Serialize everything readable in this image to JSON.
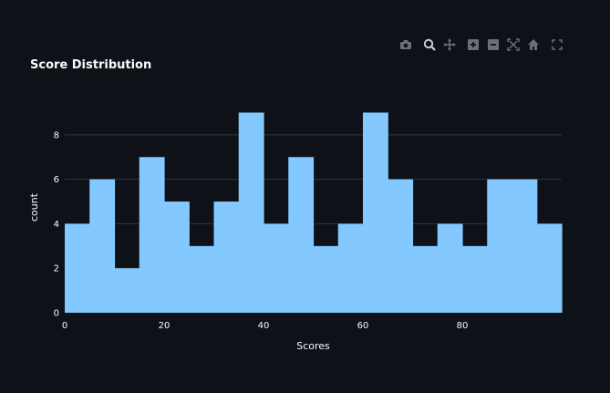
{
  "title": "Score Distribution",
  "modebar": {
    "icons": [
      "camera-icon",
      "zoom-icon",
      "pan-icon",
      "zoom-in-icon",
      "zoom-out-icon",
      "autoscale-icon",
      "reset-axes-icon",
      "fullscreen-icon"
    ]
  },
  "colors": {
    "background": "#0e1117",
    "bar": "#83c9ff",
    "grid": "#31333f",
    "text": "#fafafa",
    "icon": "#6b6f7a"
  },
  "chart_data": {
    "type": "bar",
    "title": "Score Distribution",
    "xlabel": "Scores",
    "ylabel": "count",
    "bin_width": 5,
    "bins_start": [
      0,
      5,
      10,
      15,
      20,
      25,
      30,
      35,
      40,
      45,
      50,
      55,
      60,
      65,
      70,
      75,
      80,
      85,
      90,
      95
    ],
    "values": [
      4,
      6,
      2,
      7,
      5,
      3,
      5,
      9,
      4,
      7,
      3,
      4,
      9,
      6,
      3,
      4,
      3,
      6,
      6,
      4
    ],
    "xlim": [
      0,
      100
    ],
    "ylim": [
      0,
      9.47
    ],
    "x_ticks": [
      0,
      20,
      40,
      60,
      80
    ],
    "y_ticks": [
      0,
      2,
      4,
      6,
      8
    ],
    "grid": true
  }
}
